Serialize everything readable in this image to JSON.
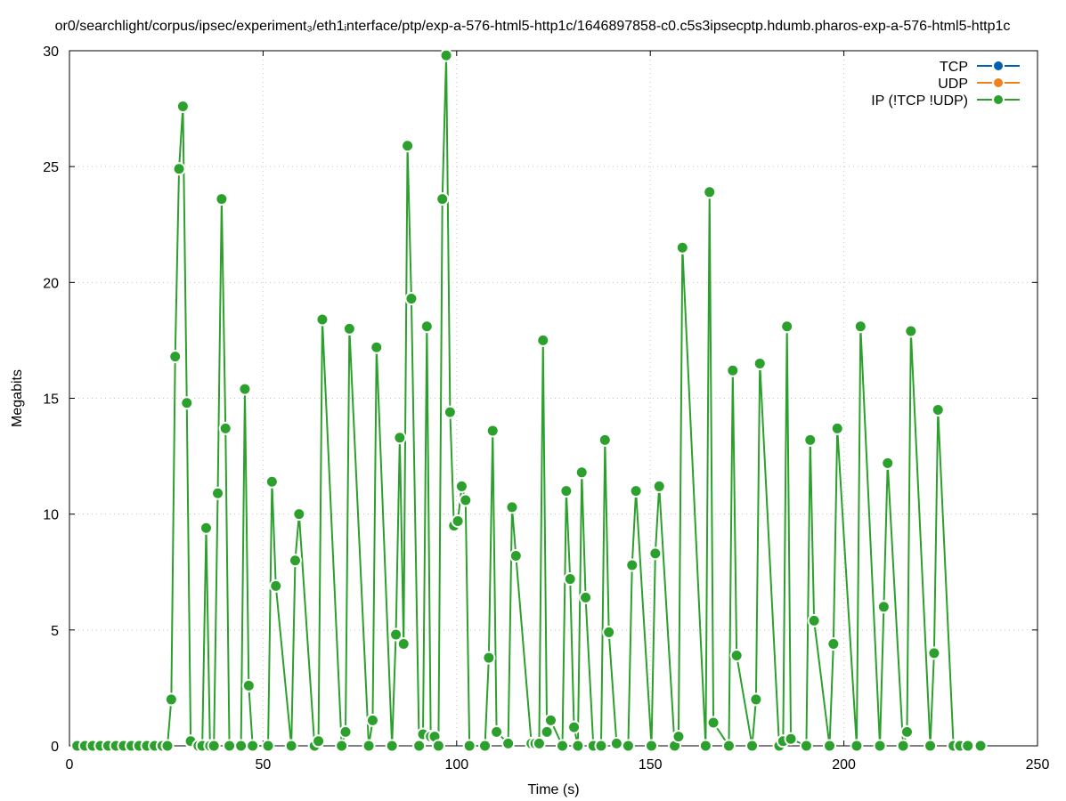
{
  "chart_data": {
    "type": "line",
    "title": "or0/searchlight/corpus/ipsec/experiment₃/eth1ᵢnterface/ptp/exp-a-576-html5-http1c/1646897858-c0.c5s3ipsecptp.hdumb.pharos-exp-a-576-html5-http1c",
    "xlabel": "Time (s)",
    "ylabel": "Megabits",
    "xlim": [
      0,
      250
    ],
    "ylim": [
      0,
      30
    ],
    "xticks": [
      0,
      50,
      100,
      150,
      200,
      250
    ],
    "yticks": [
      0,
      5,
      10,
      15,
      20,
      25,
      30
    ],
    "grid": true,
    "legend_position": "top-right",
    "series": [
      {
        "name": "TCP",
        "color": "#0060ad",
        "x": [],
        "y": []
      },
      {
        "name": "UDP",
        "color": "#f0821e",
        "x": [],
        "y": []
      },
      {
        "name": "IP (!TCP  !UDP)",
        "color": "#2ca02c",
        "x": [
          2,
          4,
          6,
          8,
          10,
          12,
          14,
          16,
          18,
          20,
          22,
          24,
          25.3,
          26.3,
          27.3,
          28.3,
          29.3,
          30.3,
          31.3,
          33.3,
          34.3,
          35.3,
          36.3,
          37.3,
          38.3,
          39.3,
          40.3,
          41.3,
          44.3,
          45.3,
          46.3,
          47.3,
          51.3,
          52.3,
          53.3,
          57.3,
          58.3,
          59.3,
          63.3,
          64.3,
          65.3,
          70.3,
          71.3,
          72.3,
          77.3,
          78.3,
          79.3,
          83.3,
          84.3,
          85.3,
          86.3,
          87.3,
          88.3,
          90.3,
          91.3,
          92.3,
          93.3,
          94.3,
          95.3,
          96.3,
          97.3,
          98.3,
          99.3,
          100.3,
          101.3,
          102.3,
          103.3,
          107.3,
          108.3,
          109.3,
          110.3,
          113.3,
          114.3,
          115.3,
          119.3,
          120.3,
          121.3,
          122.3,
          123.3,
          124.3,
          127.3,
          128.3,
          129.3,
          130.3,
          131.3,
          132.3,
          133.3,
          135.3,
          137.3,
          138.3,
          139.3,
          141.3,
          144.3,
          145.3,
          146.3,
          150.3,
          151.3,
          152.3,
          156.3,
          157.3,
          158.3,
          164.3,
          165.3,
          166.3,
          170.3,
          171.3,
          172.3,
          176.3,
          177.3,
          178.3,
          183.3,
          184.3,
          185.3,
          186.3,
          190.3,
          191.3,
          192.3,
          196.3,
          197.3,
          198.3,
          203.3,
          204.3,
          209.3,
          210.3,
          211.3,
          215.3,
          216.3,
          217.3,
          222.3,
          223.3,
          224.3,
          228.3,
          230,
          232,
          235.3
        ],
        "y": [
          0,
          0,
          0,
          0,
          0,
          0,
          0,
          0,
          0,
          0,
          0,
          0,
          0,
          2.0,
          16.8,
          24.9,
          27.6,
          14.8,
          0.2,
          0,
          0,
          9.4,
          0,
          0,
          10.9,
          23.6,
          13.7,
          0,
          0,
          15.4,
          2.6,
          0,
          0,
          11.4,
          6.9,
          0,
          8.0,
          10.0,
          0,
          0.2,
          18.4,
          0,
          0.6,
          18.0,
          0,
          1.1,
          17.2,
          0,
          4.8,
          13.3,
          4.4,
          25.9,
          19.3,
          0,
          0.5,
          18.1,
          0.4,
          0.4,
          0,
          23.6,
          29.8,
          14.4,
          9.5,
          9.7,
          11.2,
          10.6,
          0,
          0,
          3.8,
          13.6,
          0.6,
          0.1,
          10.3,
          8.2,
          0.1,
          0.1,
          0.1,
          17.5,
          0.6,
          1.1,
          0,
          11.0,
          7.2,
          0.8,
          0,
          11.8,
          6.4,
          0,
          0,
          13.2,
          4.9,
          0.1,
          0,
          7.8,
          11.0,
          0,
          8.3,
          11.2,
          0,
          0.4,
          21.5,
          0,
          23.9,
          1.0,
          0,
          16.2,
          3.9,
          0,
          2.0,
          16.5,
          0,
          0.2,
          18.1,
          0.3,
          0,
          13.2,
          5.4,
          0,
          4.4,
          13.7,
          0,
          18.1,
          0,
          6.0,
          12.2,
          0,
          0.6,
          17.9,
          0,
          4.0,
          14.5,
          0,
          0,
          0,
          0
        ]
      }
    ]
  }
}
